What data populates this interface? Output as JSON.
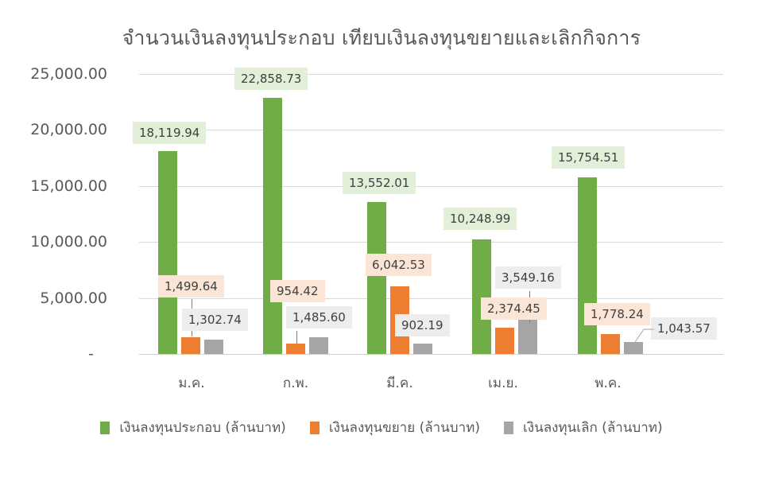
{
  "chart_data": {
    "type": "bar",
    "title": "จำนวนเงินลงทุนประกอบ เทียบเงินลงทุนขยายและเลิกกิจการ",
    "xlabel": "",
    "ylabel": "",
    "categories": [
      "ม.ค.",
      "ก.พ.",
      "มี.ค.",
      "เม.ย.",
      "พ.ค."
    ],
    "series": [
      {
        "name": "เงินลงทุนประกอบ (ล้านบาท)",
        "color": "#70ad47",
        "values": [
          18119.94,
          22858.73,
          13552.01,
          10248.99,
          15754.51
        ]
      },
      {
        "name": "เงินลงทุนขยาย (ล้านบาท)",
        "color": "#ed7d31",
        "values": [
          1499.64,
          954.42,
          6042.53,
          2374.45,
          1778.24
        ]
      },
      {
        "name": "เงินลงทุนเลิก (ล้านบาท)",
        "color": "#a5a5a5",
        "values": [
          1302.74,
          1485.6,
          902.19,
          3549.16,
          1043.57
        ]
      }
    ],
    "data_labels": {
      "green": [
        "18,119.94",
        "22,858.73",
        "13,552.01",
        "10,248.99",
        "15,754.51"
      ],
      "orange": [
        "1,499.64",
        "954.42",
        "6,042.53",
        "2,374.45",
        "1,778.24"
      ],
      "gray": [
        "1,302.74",
        "1,485.60",
        "902.19",
        "3,549.16",
        "1,043.57"
      ]
    },
    "yticks": [
      "25,000.00",
      "20,000.00",
      "15,000.00",
      "10,000.00",
      "5,000.00",
      "-"
    ],
    "ylim": [
      0,
      25000
    ],
    "grid": true,
    "legend_position": "bottom"
  }
}
